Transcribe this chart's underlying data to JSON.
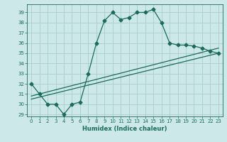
{
  "xlabel": "Humidex (Indice chaleur)",
  "bg_color": "#cce8e8",
  "grid_color": "#aacccc",
  "line_color": "#1a6b5a",
  "xlim": [
    -0.5,
    23.5
  ],
  "ylim": [
    28.8,
    39.8
  ],
  "xticks": [
    0,
    1,
    2,
    3,
    4,
    5,
    6,
    7,
    8,
    9,
    10,
    11,
    12,
    13,
    14,
    15,
    16,
    17,
    18,
    19,
    20,
    21,
    22,
    23
  ],
  "yticks": [
    29,
    30,
    31,
    32,
    33,
    34,
    35,
    36,
    37,
    38,
    39
  ],
  "series1_x": [
    0,
    1,
    2,
    3,
    4,
    5,
    6,
    7,
    8,
    9,
    10,
    11,
    12,
    13,
    14,
    15,
    16,
    17,
    18,
    19,
    20,
    21,
    22,
    23
  ],
  "series1_y": [
    32,
    31,
    30,
    30,
    29,
    30,
    30.2,
    33,
    36,
    38.2,
    39,
    38.3,
    38.5,
    39,
    39,
    39.3,
    38,
    36,
    35.8,
    35.8,
    35.7,
    35.5,
    35.2,
    35
  ],
  "line2_x": [
    0,
    23
  ],
  "line2_y": [
    30.5,
    35.0
  ],
  "line3_x": [
    0,
    23
  ],
  "line3_y": [
    30.8,
    35.5
  ]
}
